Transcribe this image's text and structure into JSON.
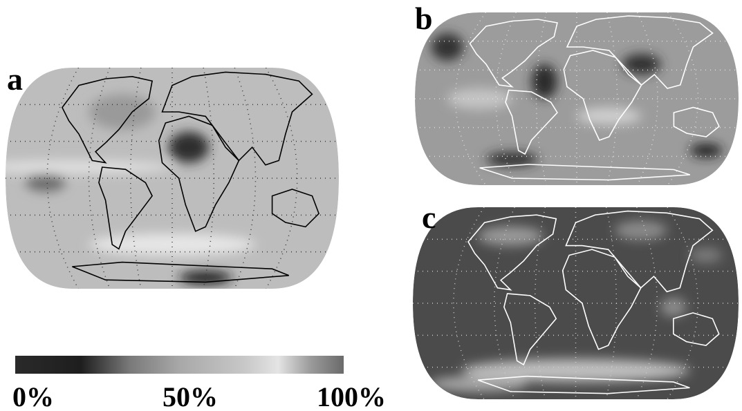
{
  "panels": [
    {
      "label": "a"
    },
    {
      "label": "b"
    },
    {
      "label": "c"
    }
  ],
  "colorbar": {
    "labels": [
      "0%",
      "50%",
      "100%"
    ]
  }
}
